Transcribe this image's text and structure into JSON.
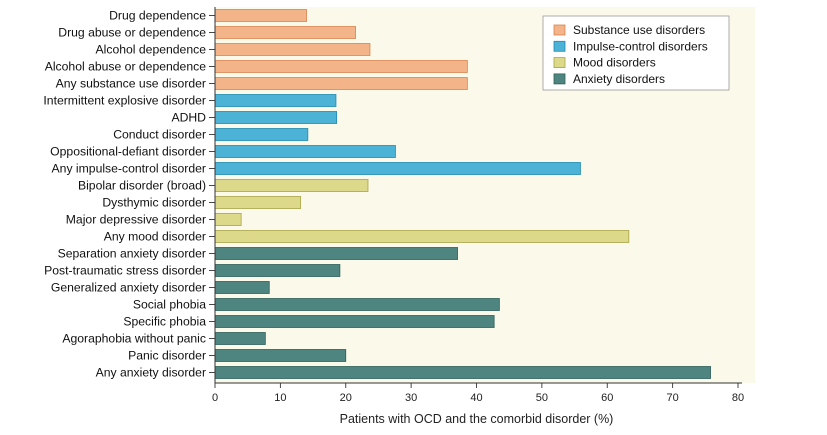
{
  "chart_data": {
    "type": "bar",
    "orientation": "horizontal",
    "title": "",
    "xlabel": "Patients with OCD and the comorbid disorder (%)",
    "ylabel": "",
    "xlim": [
      0,
      80
    ],
    "xticks": [
      0,
      10,
      20,
      30,
      40,
      50,
      60,
      70,
      80
    ],
    "grid": false,
    "background": "#fbf9ea",
    "legend_position": "top-right",
    "groups": [
      {
        "name": "Substance use disorders",
        "color": "#f3b489",
        "edge": "#d88450"
      },
      {
        "name": "Impulse-control disorders",
        "color": "#4cb3d6",
        "edge": "#1f8ab2"
      },
      {
        "name": "Mood disorders",
        "color": "#dcd98a",
        "edge": "#a9a346"
      },
      {
        "name": "Anxiety disorders",
        "color": "#4f8580",
        "edge": "#2e5f5a"
      }
    ],
    "bars": [
      {
        "label": "Drug dependence",
        "value": 14.0,
        "group": 0
      },
      {
        "label": "Drug abuse or dependence",
        "value": 21.5,
        "group": 0
      },
      {
        "label": "Alcohol dependence",
        "value": 23.7,
        "group": 0
      },
      {
        "label": "Alcohol abuse or dependence",
        "value": 38.6,
        "group": 0
      },
      {
        "label": "Any substance use disorder",
        "value": 38.6,
        "group": 0
      },
      {
        "label": "Intermittent explosive disorder",
        "value": 18.5,
        "group": 1
      },
      {
        "label": "ADHD",
        "value": 18.6,
        "group": 1
      },
      {
        "label": "Conduct disorder",
        "value": 14.2,
        "group": 1
      },
      {
        "label": "Oppositional-defiant disorder",
        "value": 27.6,
        "group": 1
      },
      {
        "label": "Any impulse-control disorder",
        "value": 55.9,
        "group": 1
      },
      {
        "label": "Bipolar disorder (broad)",
        "value": 23.4,
        "group": 2
      },
      {
        "label": "Dysthymic disorder",
        "value": 13.1,
        "group": 2
      },
      {
        "label": "Major depressive disorder",
        "value": 4.0,
        "group": 2
      },
      {
        "label": "Any mood disorder",
        "value": 63.3,
        "group": 2
      },
      {
        "label": "Separation anxiety disorder",
        "value": 37.1,
        "group": 3
      },
      {
        "label": "Post-traumatic stress disorder",
        "value": 19.1,
        "group": 3
      },
      {
        "label": "Generalized anxiety disorder",
        "value": 8.3,
        "group": 3
      },
      {
        "label": "Social phobia",
        "value": 43.5,
        "group": 3
      },
      {
        "label": "Specific phobia",
        "value": 42.7,
        "group": 3
      },
      {
        "label": "Agoraphobia without panic",
        "value": 7.7,
        "group": 3
      },
      {
        "label": "Panic disorder",
        "value": 20.0,
        "group": 3
      },
      {
        "label": "Any anxiety disorder",
        "value": 75.8,
        "group": 3
      }
    ]
  }
}
